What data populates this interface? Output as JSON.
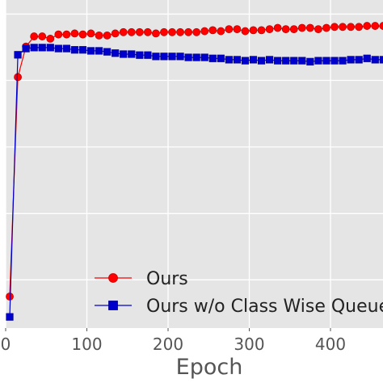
{
  "chart_data": {
    "type": "line",
    "title": "",
    "xlabel": "Epoch",
    "ylabel": "",
    "xlim": [
      0,
      460
    ],
    "ylim": [
      0,
      1
    ],
    "x_ticks": [
      0,
      100,
      200,
      300,
      400
    ],
    "y_ticks": [
      0.147,
      0.349,
      0.552,
      0.755,
      0.957
    ],
    "y_tick_labels_visible": false,
    "grid": true,
    "background": "#e5e5e5",
    "legend_position": "lower-right",
    "x": [
      5,
      15,
      25,
      35,
      45,
      55,
      65,
      75,
      85,
      95,
      105,
      115,
      125,
      135,
      145,
      155,
      165,
      175,
      185,
      195,
      205,
      215,
      225,
      235,
      245,
      255,
      265,
      275,
      285,
      295,
      305,
      315,
      325,
      335,
      345,
      355,
      365,
      375,
      385,
      395,
      405,
      415,
      425,
      435,
      445,
      455,
      465
    ],
    "series": [
      {
        "name": "Ours",
        "color": "#ff0000",
        "marker": "circle",
        "values": [
          0.096,
          0.765,
          0.858,
          0.889,
          0.889,
          0.882,
          0.895,
          0.895,
          0.898,
          0.895,
          0.898,
          0.892,
          0.892,
          0.898,
          0.902,
          0.902,
          0.902,
          0.902,
          0.898,
          0.902,
          0.902,
          0.902,
          0.902,
          0.902,
          0.905,
          0.908,
          0.905,
          0.911,
          0.911,
          0.905,
          0.908,
          0.908,
          0.911,
          0.915,
          0.911,
          0.911,
          0.915,
          0.915,
          0.911,
          0.915,
          0.918,
          0.918,
          0.918,
          0.918,
          0.921,
          0.921,
          0.921
        ]
      },
      {
        "name": "Ours w/o Class Wise Queue",
        "color": "#0000cc",
        "marker": "square",
        "values": [
          0.034,
          0.833,
          0.852,
          0.855,
          0.855,
          0.855,
          0.852,
          0.852,
          0.848,
          0.848,
          0.845,
          0.845,
          0.842,
          0.838,
          0.835,
          0.835,
          0.832,
          0.832,
          0.828,
          0.828,
          0.828,
          0.828,
          0.825,
          0.825,
          0.825,
          0.822,
          0.822,
          0.818,
          0.818,
          0.815,
          0.818,
          0.815,
          0.818,
          0.815,
          0.815,
          0.815,
          0.815,
          0.812,
          0.815,
          0.815,
          0.815,
          0.815,
          0.818,
          0.818,
          0.822,
          0.818,
          0.818
        ]
      }
    ]
  }
}
